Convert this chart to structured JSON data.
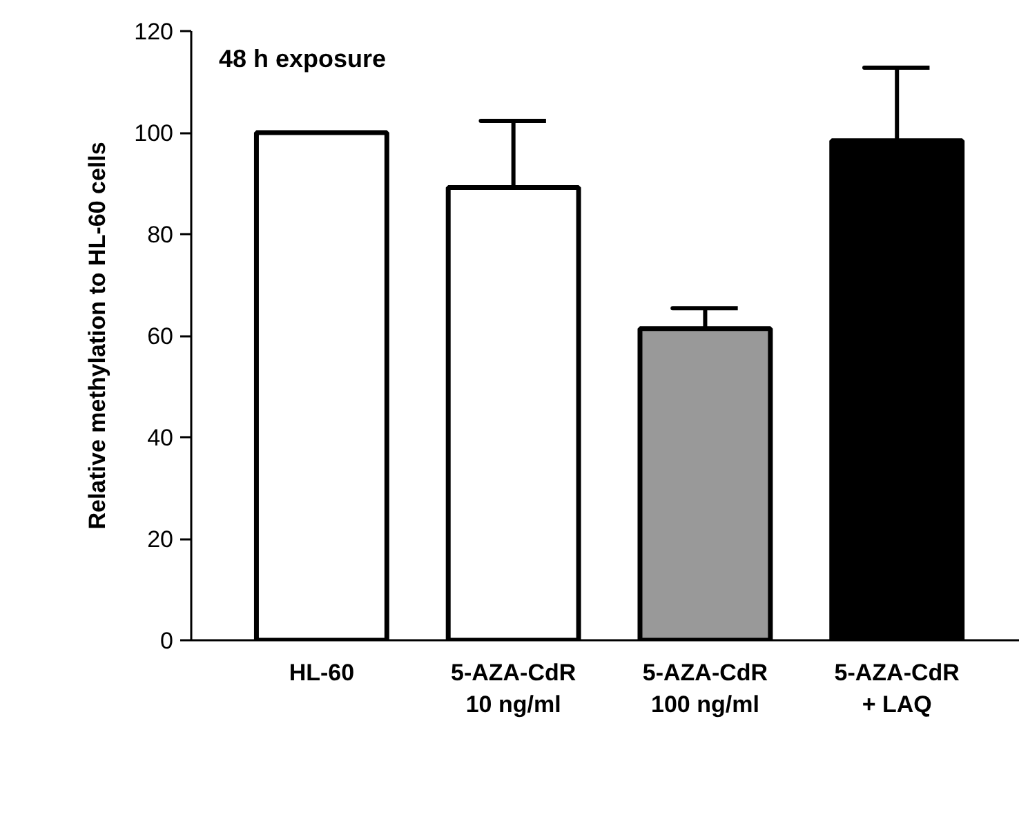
{
  "chart_data": {
    "type": "bar",
    "title": "48 h exposure",
    "ylabel": "Relative methylation to HL-60 cells",
    "categories": [
      "HL-60",
      "5-AZA-CdR\n10 ng/ml",
      "5-AZA-CdR\n100 ng/ml",
      "5-AZA-CdR\n+ LAQ"
    ],
    "values": [
      100,
      89.2,
      61.4,
      98.4
    ],
    "colors": [
      "#ffffff",
      "#ffffff",
      "#999999",
      "#000000"
    ],
    "errors": [
      null,
      [
        89.2,
        102.3
      ],
      [
        61.4,
        65.4
      ],
      [
        98.4,
        112.8
      ]
    ],
    "ylim": [
      0,
      120
    ],
    "yticks": [
      0,
      20,
      40,
      60,
      80,
      100,
      120
    ],
    "grid": false
  }
}
